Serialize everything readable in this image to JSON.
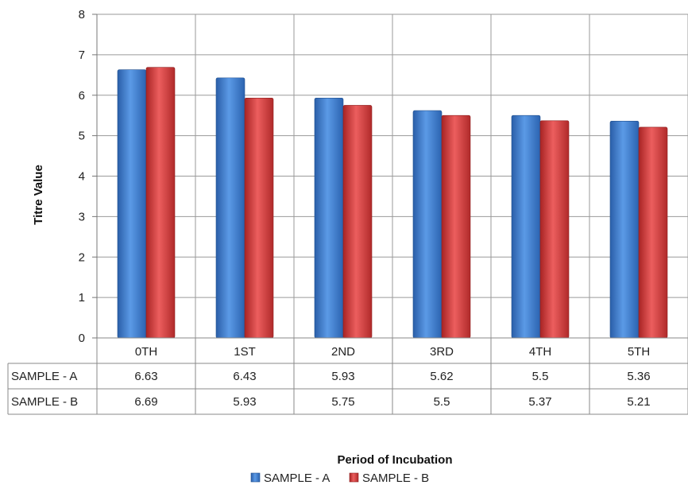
{
  "chart_data": {
    "type": "bar",
    "xlabel": "Period of Incubation",
    "ylabel": "Titre Value",
    "ylim": [
      0,
      8
    ],
    "yticks": [
      "0",
      "1",
      "2",
      "3",
      "4",
      "5",
      "6",
      "7",
      "8"
    ],
    "categories": [
      "0TH",
      "1ST",
      "2ND",
      "3RD",
      "4TH",
      "5TH"
    ],
    "series": [
      {
        "name": "SAMPLE - A",
        "values": [
          6.63,
          6.43,
          5.93,
          5.62,
          5.5,
          5.36
        ],
        "value_labels": [
          "6.63",
          "6.43",
          "5.93",
          "5.62",
          "5.5",
          "5.36"
        ],
        "color": "#3a78c9"
      },
      {
        "name": "SAMPLE - B",
        "values": [
          6.69,
          5.93,
          5.75,
          5.5,
          5.37,
          5.21
        ],
        "value_labels": [
          "6.69",
          "5.93",
          "5.75",
          "5.5",
          "5.37",
          "5.21"
        ],
        "color": "#d03b3b"
      }
    ],
    "grid": true,
    "legend": "bottom-center",
    "data_table": true
  }
}
